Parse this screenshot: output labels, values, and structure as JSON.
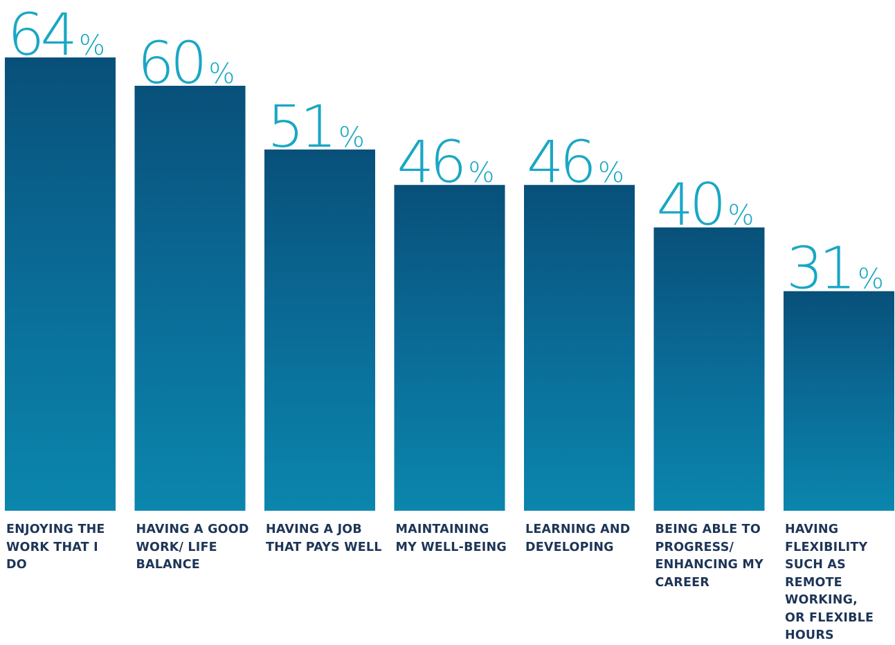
{
  "chart_data": {
    "type": "bar",
    "categories": [
      "ENJOYING THE WORK THAT I DO",
      "HAVING A GOOD WORK/ LIFE BALANCE",
      "HAVING A JOB THAT PAYS WELL",
      "MAINTAINING MY WELL-BEING",
      "LEARNING AND DEVELOPING",
      "BEING ABLE TO PROGRESS/ ENHANCING MY CAREER",
      "HAVING FLEXIBILITY SUCH AS REMOTE WORKING, OR FLEXIBLE HOURS"
    ],
    "values": [
      64,
      60,
      51,
      46,
      46,
      40,
      31
    ],
    "value_labels": [
      "64%",
      "60%",
      "51%",
      "46%",
      "46%",
      "40%",
      "31%"
    ],
    "color": "#0a6a93"
  }
}
